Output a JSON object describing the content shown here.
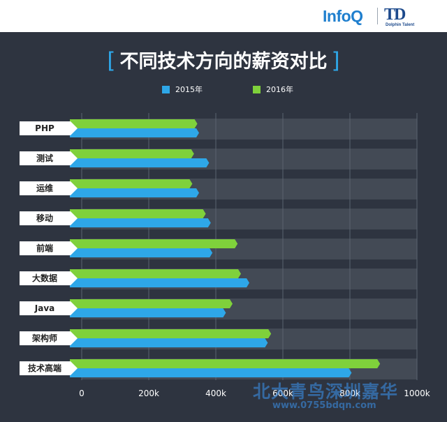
{
  "header": {
    "logo_infoq": "InfoQ",
    "logo_td": "TD",
    "logo_td_sub": "Dolphin Talent"
  },
  "watermark": {
    "text": "北大青鸟深圳嘉华",
    "url": "www.0755bdqn.com"
  },
  "colors": {
    "series_2015": "#2ea7e8",
    "series_2016": "#7fd13b",
    "track": "#434a55",
    "background": "#2e3440"
  },
  "chart_data": {
    "type": "bar",
    "orientation": "horizontal",
    "title": "不同技术方向的薪资对比",
    "categories": [
      "PHP",
      "测试",
      "运维",
      "移动",
      "前端",
      "大数据",
      "Java",
      "架构师",
      "技术高端"
    ],
    "series": [
      {
        "name": "2015年",
        "values": [
          350,
          380,
          350,
          385,
          390,
          500,
          430,
          555,
          805
        ]
      },
      {
        "name": "2016年",
        "values": [
          345,
          335,
          330,
          370,
          465,
          475,
          450,
          565,
          890
        ]
      }
    ],
    "x_ticks": [
      "0",
      "200k",
      "400k",
      "600k",
      "800k",
      "1000k"
    ],
    "xlim": [
      0,
      1000
    ],
    "grid": true,
    "legend_position": "top"
  }
}
